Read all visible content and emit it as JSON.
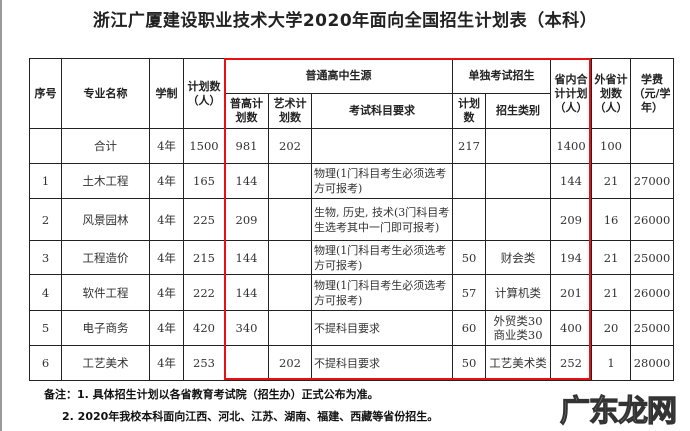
{
  "title": "浙江广厦建设职业技术大学2020年面向全国招生计划表（本科）",
  "headers": {
    "seq": "序号",
    "major": "专业名称",
    "years": "学制",
    "plan": "计划数（人）",
    "regular_group": "普通高中生源",
    "regular_plan": "普高计划数",
    "art_plan": "艺术计划数",
    "requirements": "考试科目要求",
    "single_group": "单独考试招生",
    "single_plan": "计划数",
    "single_category": "招生类别",
    "in_province": "省内合计计划（人）",
    "out_province": "外省计划数（人）",
    "tuition": "学费（元/学年）"
  },
  "rows": [
    {
      "seq": "",
      "major": "合计",
      "years": "4年",
      "plan": "1500",
      "regular": "981",
      "art": "202",
      "req": "",
      "single": "217",
      "category": "",
      "in": "1400",
      "out": "100",
      "tuition": ""
    },
    {
      "seq": "1",
      "major": "土木工程",
      "years": "4年",
      "plan": "165",
      "regular": "144",
      "art": "",
      "req": "物理(1门科目考生必须选考方可报考)",
      "single": "",
      "category": "",
      "in": "144",
      "out": "21",
      "tuition": "27000"
    },
    {
      "seq": "2",
      "major": "风景园林",
      "years": "4年",
      "plan": "225",
      "regular": "209",
      "art": "",
      "req": "生物, 历史, 技术(3门科目考生选考其中一门即可报考)",
      "single": "",
      "category": "",
      "in": "209",
      "out": "16",
      "tuition": "26000"
    },
    {
      "seq": "3",
      "major": "工程造价",
      "years": "4年",
      "plan": "215",
      "regular": "144",
      "art": "",
      "req": "物理(1门科目考生必须选考方可报考)",
      "single": "50",
      "category": "财会类",
      "in": "194",
      "out": "21",
      "tuition": "25000"
    },
    {
      "seq": "4",
      "major": "软件工程",
      "years": "4年",
      "plan": "222",
      "regular": "144",
      "art": "",
      "req": "物理(1门科目考生必须选考方可报考)",
      "single": "57",
      "category": "计算机类",
      "in": "201",
      "out": "21",
      "tuition": "26000"
    },
    {
      "seq": "5",
      "major": "电子商务",
      "years": "4年",
      "plan": "420",
      "regular": "340",
      "art": "",
      "req": "不提科目要求",
      "single": "60",
      "category": "外贸类30 商业类30",
      "in": "400",
      "out": "20",
      "tuition": "25000"
    },
    {
      "seq": "6",
      "major": "工艺美术",
      "years": "4年",
      "plan": "253",
      "regular": "",
      "art": "202",
      "req": "不提科目要求",
      "single": "50",
      "category": "工艺美术类",
      "in": "252",
      "out": "1",
      "tuition": "28000"
    }
  ],
  "notes": [
    "备注：1. 具体招生计划以各省教育考试院（招生办）正式公布为准。",
    "2. 2020年我校本科面向江西、河北、江苏、湖南、福建、西藏等省份招生。"
  ],
  "watermark": "广东龙网",
  "highlight_color": "#e81010"
}
